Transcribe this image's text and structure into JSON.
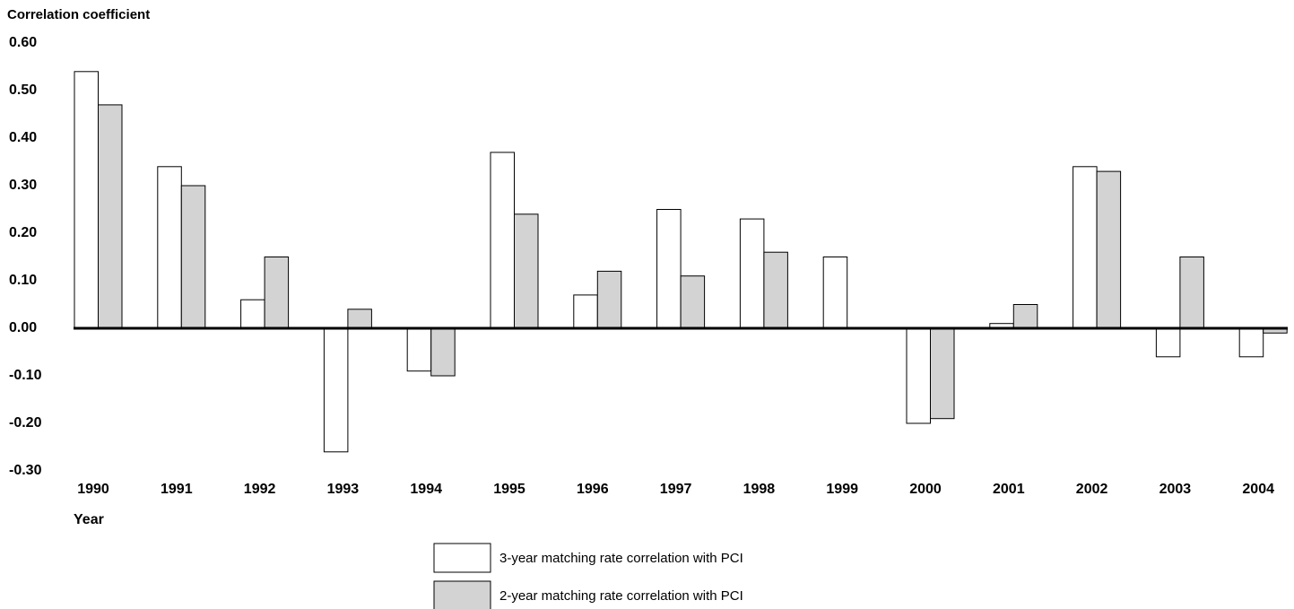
{
  "chart_data": {
    "type": "bar",
    "title": "Correlation coefficient",
    "x_label": "Year",
    "categories": [
      "1990",
      "1991",
      "1992",
      "1993",
      "1994",
      "1995",
      "1996",
      "1997",
      "1998",
      "1999",
      "2000",
      "2001",
      "2002",
      "2003",
      "2004"
    ],
    "series": [
      {
        "name": "3-year matching rate correlation with PCI",
        "color": "#ffffff",
        "values": [
          0.54,
          0.34,
          0.06,
          -0.26,
          -0.09,
          0.37,
          0.07,
          0.25,
          0.23,
          0.15,
          -0.2,
          0.01,
          0.34,
          -0.06,
          -0.06
        ]
      },
      {
        "name": "2-year matching rate correlation with PCI",
        "color": "#d3d3d3",
        "values": [
          0.47,
          0.3,
          0.15,
          0.04,
          -0.1,
          0.24,
          0.12,
          0.11,
          0.16,
          0,
          -0.19,
          0.05,
          0.33,
          0.15,
          -0.01
        ]
      }
    ],
    "ylim": [
      -0.3,
      0.6
    ],
    "yticks": [
      {
        "value": 0.6,
        "label": "0.60"
      },
      {
        "value": 0.5,
        "label": "0.50"
      },
      {
        "value": 0.4,
        "label": "0.40"
      },
      {
        "value": 0.3,
        "label": "0.30"
      },
      {
        "value": 0.2,
        "label": "0.20"
      },
      {
        "value": 0.1,
        "label": "0.10"
      },
      {
        "value": 0,
        "label": "0.00"
      },
      {
        "value": -0.1,
        "label": "-0.10"
      },
      {
        "value": -0.2,
        "label": "-0.20"
      },
      {
        "value": -0.3,
        "label": "-0.30"
      }
    ],
    "grid": false
  }
}
